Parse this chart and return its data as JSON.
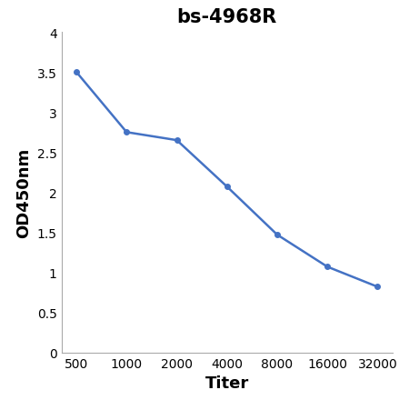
{
  "title": "bs-4968R",
  "xlabel": "Titer",
  "ylabel": "OD450nm",
  "y_values": [
    3.5,
    2.75,
    2.65,
    2.07,
    1.47,
    1.07,
    0.82
  ],
  "x_positions": [
    0,
    1,
    2,
    3,
    4,
    5,
    6
  ],
  "x_labels": [
    "500",
    "1000",
    "2000",
    "4000",
    "8000",
    "16000",
    "32000"
  ],
  "line_color": "#4472C4",
  "marker": "o",
  "marker_size": 4,
  "line_width": 1.8,
  "ylim": [
    0,
    4.0
  ],
  "yticks": [
    0,
    0.5,
    1,
    1.5,
    2,
    2.5,
    3,
    3.5,
    4
  ],
  "title_fontsize": 15,
  "axis_label_fontsize": 13,
  "tick_fontsize": 10,
  "background_color": "#ffffff"
}
